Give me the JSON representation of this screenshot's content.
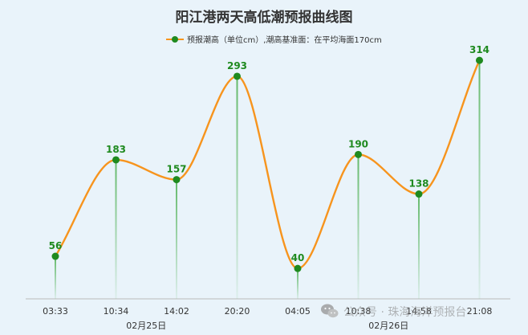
{
  "chart_data": {
    "type": "line",
    "title": "阳江港两天高低潮预报曲线图",
    "legend": {
      "label": "预报潮高（单位cm）,潮高基准面：在平均海面170cm",
      "placement": "top-center"
    },
    "x": [
      "03:33",
      "10:34",
      "14:02",
      "20:20",
      "04:05",
      "10:38",
      "14:58",
      "21:08"
    ],
    "dates": [
      {
        "label": "02月25日",
        "span": [
          0,
          3
        ]
      },
      {
        "label": "02月26日",
        "span": [
          4,
          7
        ]
      }
    ],
    "series": [
      {
        "name": "预报潮高（单位cm）,潮高基准面：在平均海面170cm",
        "values": [
          56,
          183,
          157,
          293,
          40,
          190,
          138,
          314
        ]
      }
    ],
    "ylim": [
      0,
      330
    ],
    "smooth": true,
    "grid": false,
    "xlabel": "",
    "ylabel": ""
  },
  "colors": {
    "background": "#e9f3fa",
    "line": "#f7941d",
    "marker": "#1f8a1f",
    "value_label": "#1f8a1f",
    "drop_line_top": "#4caf50",
    "axis": "#bbbbbb"
  },
  "watermark": {
    "icon": "wechat-icon",
    "text": "公众号 · 珠海海洋预报台"
  }
}
